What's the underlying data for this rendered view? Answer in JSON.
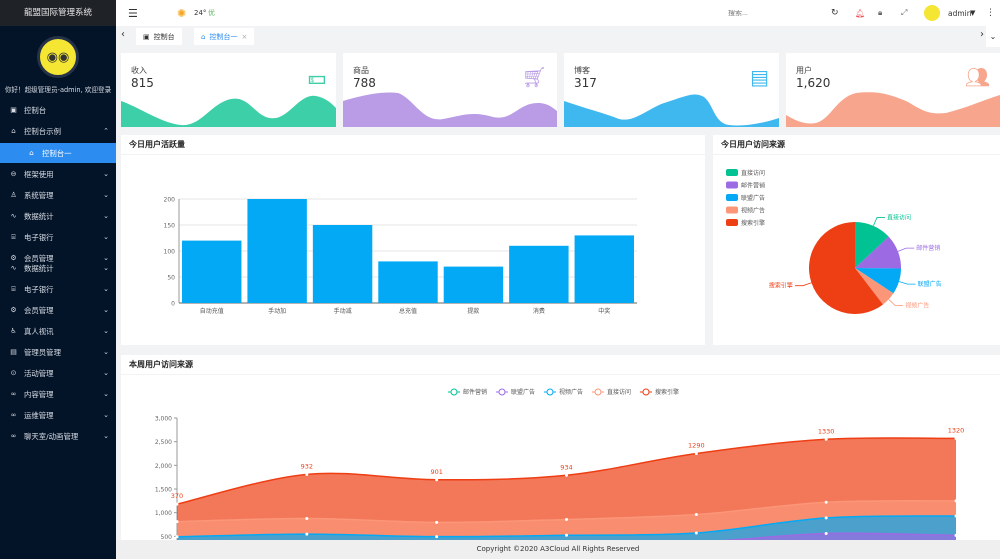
{
  "app": {
    "title": "龍盟国际管理系统",
    "welcome": "你好！超级管理员-admin, 欢迎登录"
  },
  "sidebar": {
    "items": [
      {
        "label": "控制台",
        "icon": "monitor-icon"
      },
      {
        "label": "控制台示例",
        "icon": "home-icon",
        "expanded": true
      },
      {
        "label": "控制台一",
        "icon": "home-icon",
        "active": true
      },
      {
        "label": "框架使用",
        "icon": "frame-icon"
      },
      {
        "label": "系统管理",
        "icon": "user-icon"
      },
      {
        "label": "数据统计",
        "icon": "pulse-icon"
      },
      {
        "label": "电子银行",
        "icon": "bank-icon"
      },
      {
        "label": "会员管理",
        "icon": "gear-icon"
      },
      {
        "label": "数据统计",
        "icon": "pulse-icon"
      },
      {
        "label": "电子银行",
        "icon": "bank-icon"
      },
      {
        "label": "会员管理",
        "icon": "gear-icon"
      },
      {
        "label": "真人视讯",
        "icon": "person-icon"
      },
      {
        "label": "管理员管理",
        "icon": "list-icon"
      },
      {
        "label": "活动管理",
        "icon": "circle-icon"
      },
      {
        "label": "内容管理",
        "icon": "link-icon"
      },
      {
        "label": "运维管理",
        "icon": "link-icon"
      },
      {
        "label": "聊天室/动画管理",
        "icon": "link-icon"
      }
    ]
  },
  "header": {
    "weather_temp": "24°",
    "weather_quality": "优",
    "search_placeholder": "搜索...",
    "user": "admin"
  },
  "tabs": [
    {
      "label": "控制台"
    },
    {
      "label": "控制台一",
      "active": true
    }
  ],
  "stats": [
    {
      "label": "收入",
      "value": "815",
      "color": "#3dcfa7",
      "icon": "money-icon"
    },
    {
      "label": "商品",
      "value": "788",
      "color": "#b99be6",
      "icon": "cart-icon"
    },
    {
      "label": "博客",
      "value": "317",
      "color": "#3fb8f0",
      "icon": "browser-icon"
    },
    {
      "label": "用户",
      "value": "1,620",
      "color": "#f7a58c",
      "icon": "users-icon"
    }
  ],
  "panels": {
    "bar_title": "今日用户活跃量",
    "pie_title": "今日用户访问来源",
    "area_title": "本周用户访问来源"
  },
  "footer": "Copyright ©2020 A3Cloud All Rights Reserved",
  "chart_data": [
    {
      "type": "bar",
      "categories": [
        "自动充值",
        "手动加",
        "手动减",
        "总充值",
        "提款",
        "消费",
        "中奖"
      ],
      "values": [
        120,
        200,
        150,
        80,
        70,
        110,
        130
      ],
      "ylim": [
        0,
        200
      ],
      "yticks": [
        "0",
        "50",
        "100",
        "150",
        "200"
      ],
      "color": "#03a9f4",
      "grid": true
    },
    {
      "type": "pie",
      "legend_position": "top-left",
      "slices": [
        {
          "name": "直接访问",
          "value": 335,
          "color": "#00c292"
        },
        {
          "name": "邮件营销",
          "value": 310,
          "color": "#9c6ae3"
        },
        {
          "name": "联盟广告",
          "value": 234,
          "color": "#03a9f4"
        },
        {
          "name": "视频广告",
          "value": 135,
          "color": "#fb9678"
        },
        {
          "name": "搜索引擎",
          "value": 1548,
          "color": "#ee3e14"
        }
      ]
    },
    {
      "type": "area",
      "stacked": true,
      "legend_position": "top",
      "ylim": [
        0,
        3000
      ],
      "yticks": [
        "500",
        "1,000",
        "1,500",
        "2,000",
        "2,500",
        "3,000"
      ],
      "series": [
        {
          "name": "邮件营销",
          "values": [
            120,
            132,
            101,
            134,
            90,
            230,
            210
          ],
          "color": "#00c292"
        },
        {
          "name": "联盟广告",
          "values": [
            220,
            182,
            191,
            234,
            290,
            330,
            310
          ],
          "color": "#9c6ae3"
        },
        {
          "name": "视频广告",
          "values": [
            150,
            232,
            201,
            154,
            190,
            330,
            410
          ],
          "color": "#03a9f4"
        },
        {
          "name": "直接访问",
          "values": [
            320,
            332,
            301,
            334,
            390,
            330,
            320
          ],
          "color": "#fb9678"
        },
        {
          "name": "搜索引擎",
          "values": [
            370,
            932,
            901,
            934,
            1290,
            1330,
            1320
          ],
          "color": "#ee3e14",
          "labels": [
            "370",
            "932",
            "901",
            "934",
            "1290",
            "1330",
            "1320"
          ]
        }
      ]
    }
  ]
}
